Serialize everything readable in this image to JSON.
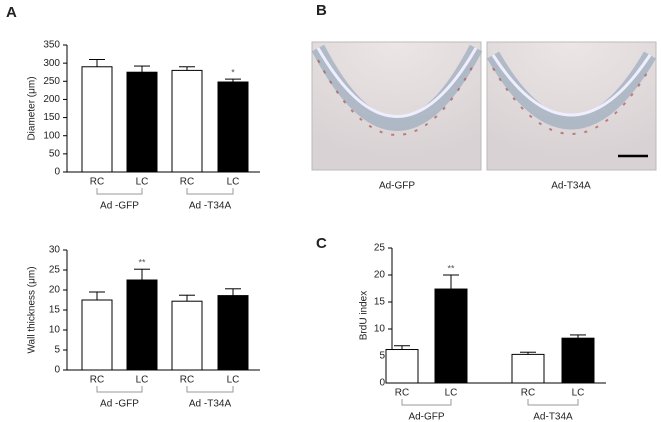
{
  "panel_labels": [
    "A",
    "B",
    "C"
  ],
  "images": [
    {
      "caption": "Ad-GFP"
    },
    {
      "caption": "Ad-T34A"
    }
  ],
  "chart_data": [
    {
      "type": "bar",
      "y_label": "Diameter (μm)",
      "categories": [
        "RC",
        "LC",
        "RC",
        "LC"
      ],
      "values": [
        290,
        275,
        280,
        248
      ],
      "errors": [
        20,
        17,
        10,
        8
      ],
      "colors": [
        "#ffffff",
        "#000000",
        "#ffffff",
        "#000000"
      ],
      "significance": [
        null,
        null,
        null,
        "*"
      ],
      "group_labels": [
        "Ad -GFP",
        "Ad -T34A"
      ],
      "ylim": [
        0,
        350
      ],
      "yticks": [
        0,
        50,
        100,
        150,
        200,
        250,
        300,
        350
      ]
    },
    {
      "type": "bar",
      "y_label": "Wall thickness (μm)",
      "categories": [
        "RC",
        "LC",
        "RC",
        "LC"
      ],
      "values": [
        17.5,
        22.5,
        17.2,
        18.6
      ],
      "errors": [
        2,
        2.7,
        1.5,
        1.7
      ],
      "colors": [
        "#ffffff",
        "#000000",
        "#ffffff",
        "#000000"
      ],
      "significance": [
        null,
        "**",
        null,
        null
      ],
      "group_labels": [
        "Ad -GFP",
        "Ad -T34A"
      ],
      "ylim": [
        0,
        30
      ],
      "yticks": [
        0,
        5,
        10,
        15,
        20,
        25,
        30
      ]
    },
    {
      "type": "bar",
      "y_label": "BrdU index",
      "categories": [
        "RC",
        "LC",
        "RC",
        "LC"
      ],
      "values": [
        6.2,
        17.4,
        5.3,
        8.3
      ],
      "errors": [
        0.7,
        2.6,
        0.4,
        0.6
      ],
      "colors": [
        "#ffffff",
        "#000000",
        "#ffffff",
        "#000000"
      ],
      "significance": [
        null,
        "**",
        null,
        null
      ],
      "group_labels": [
        "Ad-GFP",
        "Ad-T34A"
      ],
      "ylim": [
        0,
        25
      ],
      "yticks": [
        0,
        5,
        10,
        15,
        20,
        25
      ]
    }
  ]
}
